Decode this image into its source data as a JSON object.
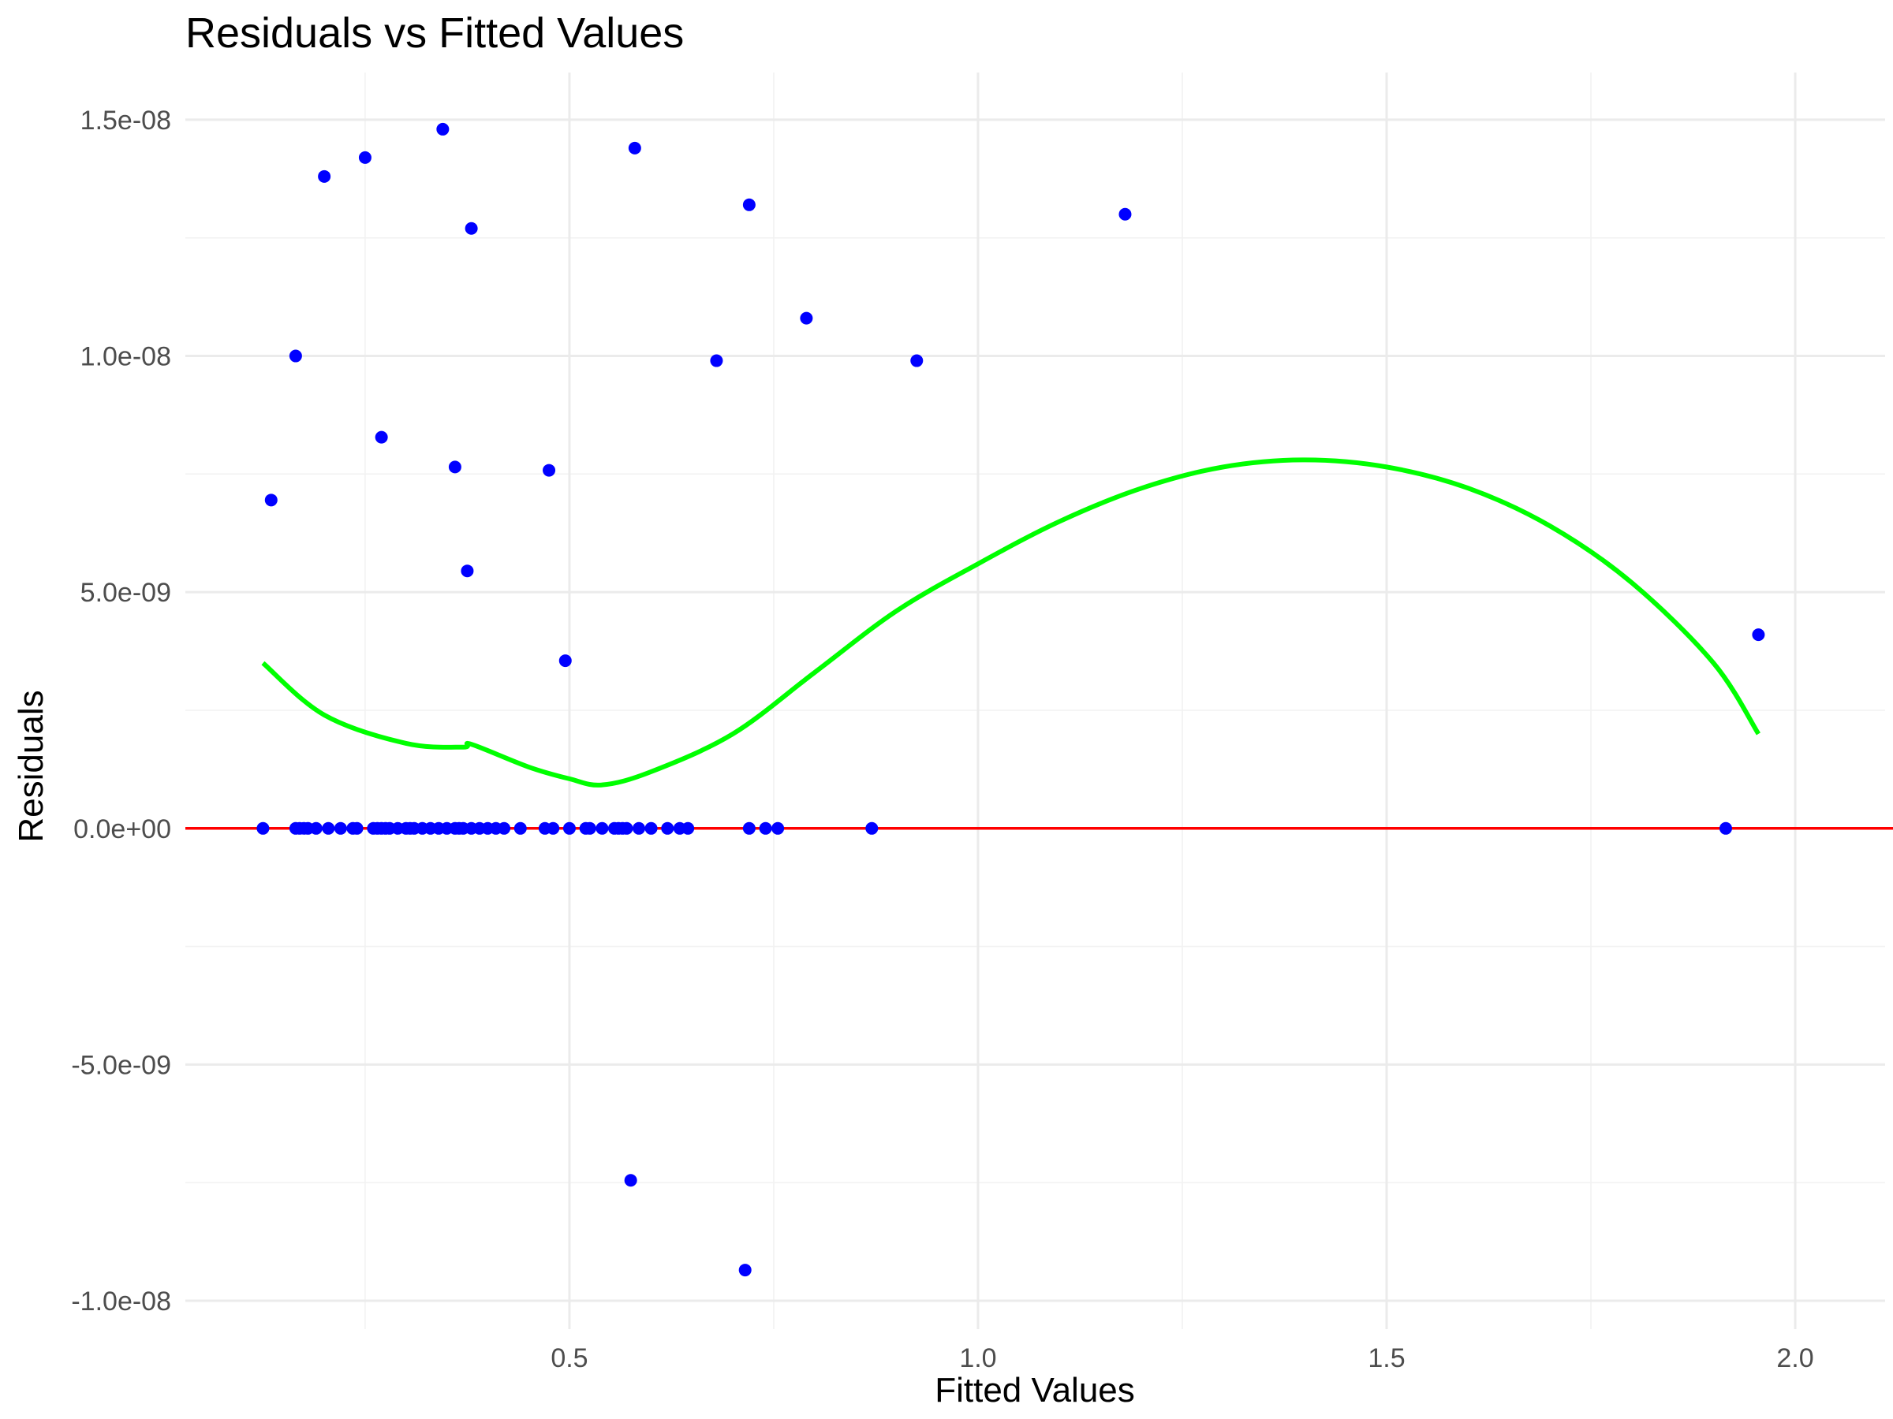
{
  "chart_data": {
    "type": "scatter",
    "title": "Residuals vs Fitted Values",
    "xlabel": "Fitted Values",
    "ylabel": "Residuals",
    "xlim": [
      0.03,
      2.11
    ],
    "ylim": [
      -1.06e-08,
      1.6e-08
    ],
    "x_ticks": [
      {
        "value": 0.5,
        "label": "0.5"
      },
      {
        "value": 1.0,
        "label": "1.0"
      },
      {
        "value": 1.5,
        "label": "1.5"
      },
      {
        "value": 2.0,
        "label": "2.0"
      }
    ],
    "y_ticks": [
      {
        "value": -1e-08,
        "label": "-1.0e-08"
      },
      {
        "value": -5e-09,
        "label": "-5.0e-09"
      },
      {
        "value": 0,
        "label": "0.0e+00"
      },
      {
        "value": 5e-09,
        "label": "5.0e-09"
      },
      {
        "value": 1e-08,
        "label": "1.0e-08"
      },
      {
        "value": 1.5e-08,
        "label": "1.5e-08"
      }
    ],
    "grid": true,
    "colors": {
      "points": "#0000ff",
      "reference_line": "#ff0000",
      "smooth": "#00ff00"
    },
    "reference_line_y": 0,
    "points": {
      "x": [
        0.125,
        0.165,
        0.17,
        0.175,
        0.18,
        0.19,
        0.205,
        0.22,
        0.235,
        0.24,
        0.26,
        0.265,
        0.27,
        0.275,
        0.28,
        0.29,
        0.3,
        0.305,
        0.31,
        0.32,
        0.33,
        0.34,
        0.35,
        0.36,
        0.365,
        0.37,
        0.38,
        0.39,
        0.4,
        0.41,
        0.42,
        0.44,
        0.47,
        0.48,
        0.5,
        0.52,
        0.525,
        0.54,
        0.555,
        0.56,
        0.565,
        0.57,
        0.585,
        0.6,
        0.62,
        0.635,
        0.645,
        0.72,
        0.74,
        0.755,
        0.87,
        1.915,
        0.135,
        0.165,
        0.2,
        0.25,
        0.27,
        0.345,
        0.36,
        0.375,
        0.38,
        0.475,
        0.495,
        0.575,
        0.58,
        0.68,
        0.715,
        0.72,
        0.79,
        0.925,
        1.18,
        1.955
      ],
      "y": [
        0,
        0,
        0,
        0,
        0,
        0,
        0,
        0,
        0,
        0,
        0,
        0,
        0,
        0,
        0,
        0,
        0,
        0,
        0,
        0,
        0,
        0,
        0,
        0,
        0,
        0,
        0,
        0,
        0,
        0,
        0,
        0,
        0,
        0,
        0,
        0,
        0,
        0,
        0,
        0,
        0,
        0,
        0,
        0,
        0,
        0,
        0,
        0,
        0,
        0,
        0,
        0,
        6.95e-09,
        1e-08,
        1.38e-08,
        1.42e-08,
        8.28e-09,
        1.48e-08,
        7.65e-09,
        5.45e-09,
        1.27e-08,
        7.58e-09,
        3.55e-09,
        -7.45e-09,
        1.44e-08,
        9.9e-09,
        -9.35e-09,
        1.32e-08,
        1.08e-08,
        9.9e-09,
        1.3e-08,
        4.1e-09
      ]
    },
    "smooth_line": {
      "x": [
        0.125,
        0.2,
        0.3,
        0.37,
        0.38,
        0.45,
        0.5,
        0.54,
        0.6,
        0.7,
        0.8,
        0.9,
        1.0,
        1.1,
        1.2,
        1.3,
        1.4,
        1.5,
        1.6,
        1.7,
        1.8,
        1.9,
        1.955
      ],
      "y": [
        3.5e-09,
        2.4e-09,
        1.8e-09,
        1.72e-09,
        1.78e-09,
        1.3e-09,
        1.05e-09,
        9.2e-10,
        1.2e-09,
        2e-09,
        3.3e-09,
        4.6e-09,
        5.6e-09,
        6.5e-09,
        7.2e-09,
        7.65e-09,
        7.8e-09,
        7.65e-09,
        7.2e-09,
        6.4e-09,
        5.2e-09,
        3.5e-09,
        2e-09
      ]
    }
  }
}
